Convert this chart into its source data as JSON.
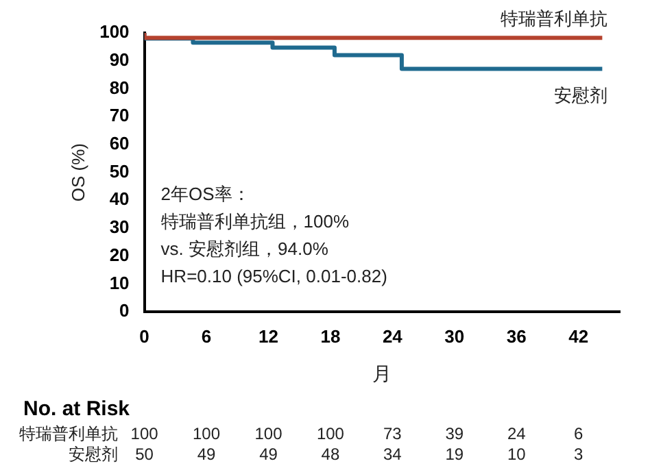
{
  "chart_data": {
    "type": "step",
    "xlabel": "月",
    "ylabel": "OS (%)",
    "xlim": [
      0,
      46
    ],
    "xticks": [
      0,
      6,
      12,
      18,
      24,
      30,
      36,
      42
    ],
    "ylim": [
      0,
      100
    ],
    "yticks": [
      0,
      10,
      20,
      30,
      40,
      50,
      60,
      70,
      80,
      90,
      100
    ],
    "series": [
      {
        "name": "特瑞普利单抗",
        "color": "#b5432f",
        "x": [
          0,
          29.5,
          44.3
        ],
        "values": [
          100,
          98.2,
          98.2
        ]
      },
      {
        "name": "安慰剂",
        "color": "#1f6a8f",
        "x": [
          0,
          4.7,
          12.4,
          18.4,
          24.9,
          30.2,
          44.3
        ],
        "values": [
          100,
          98,
          96.5,
          94.7,
          92,
          87.1,
          87.1
        ]
      }
    ],
    "annotations": [
      "2年OS率：",
      "特瑞普利单抗组，100%",
      "vs. 安慰剂组，94.0%",
      "HR=0.10 (95%CI, 0.01-0.82)",
      "No. at Risk",
      "特瑞普利单抗 100 100 100 100 73 39 24 6",
      "安慰剂 50 49 49 48 34 19 10 3"
    ],
    "legend": false,
    "grid": false,
    "marker": "none",
    "line_style": "solid"
  }
}
